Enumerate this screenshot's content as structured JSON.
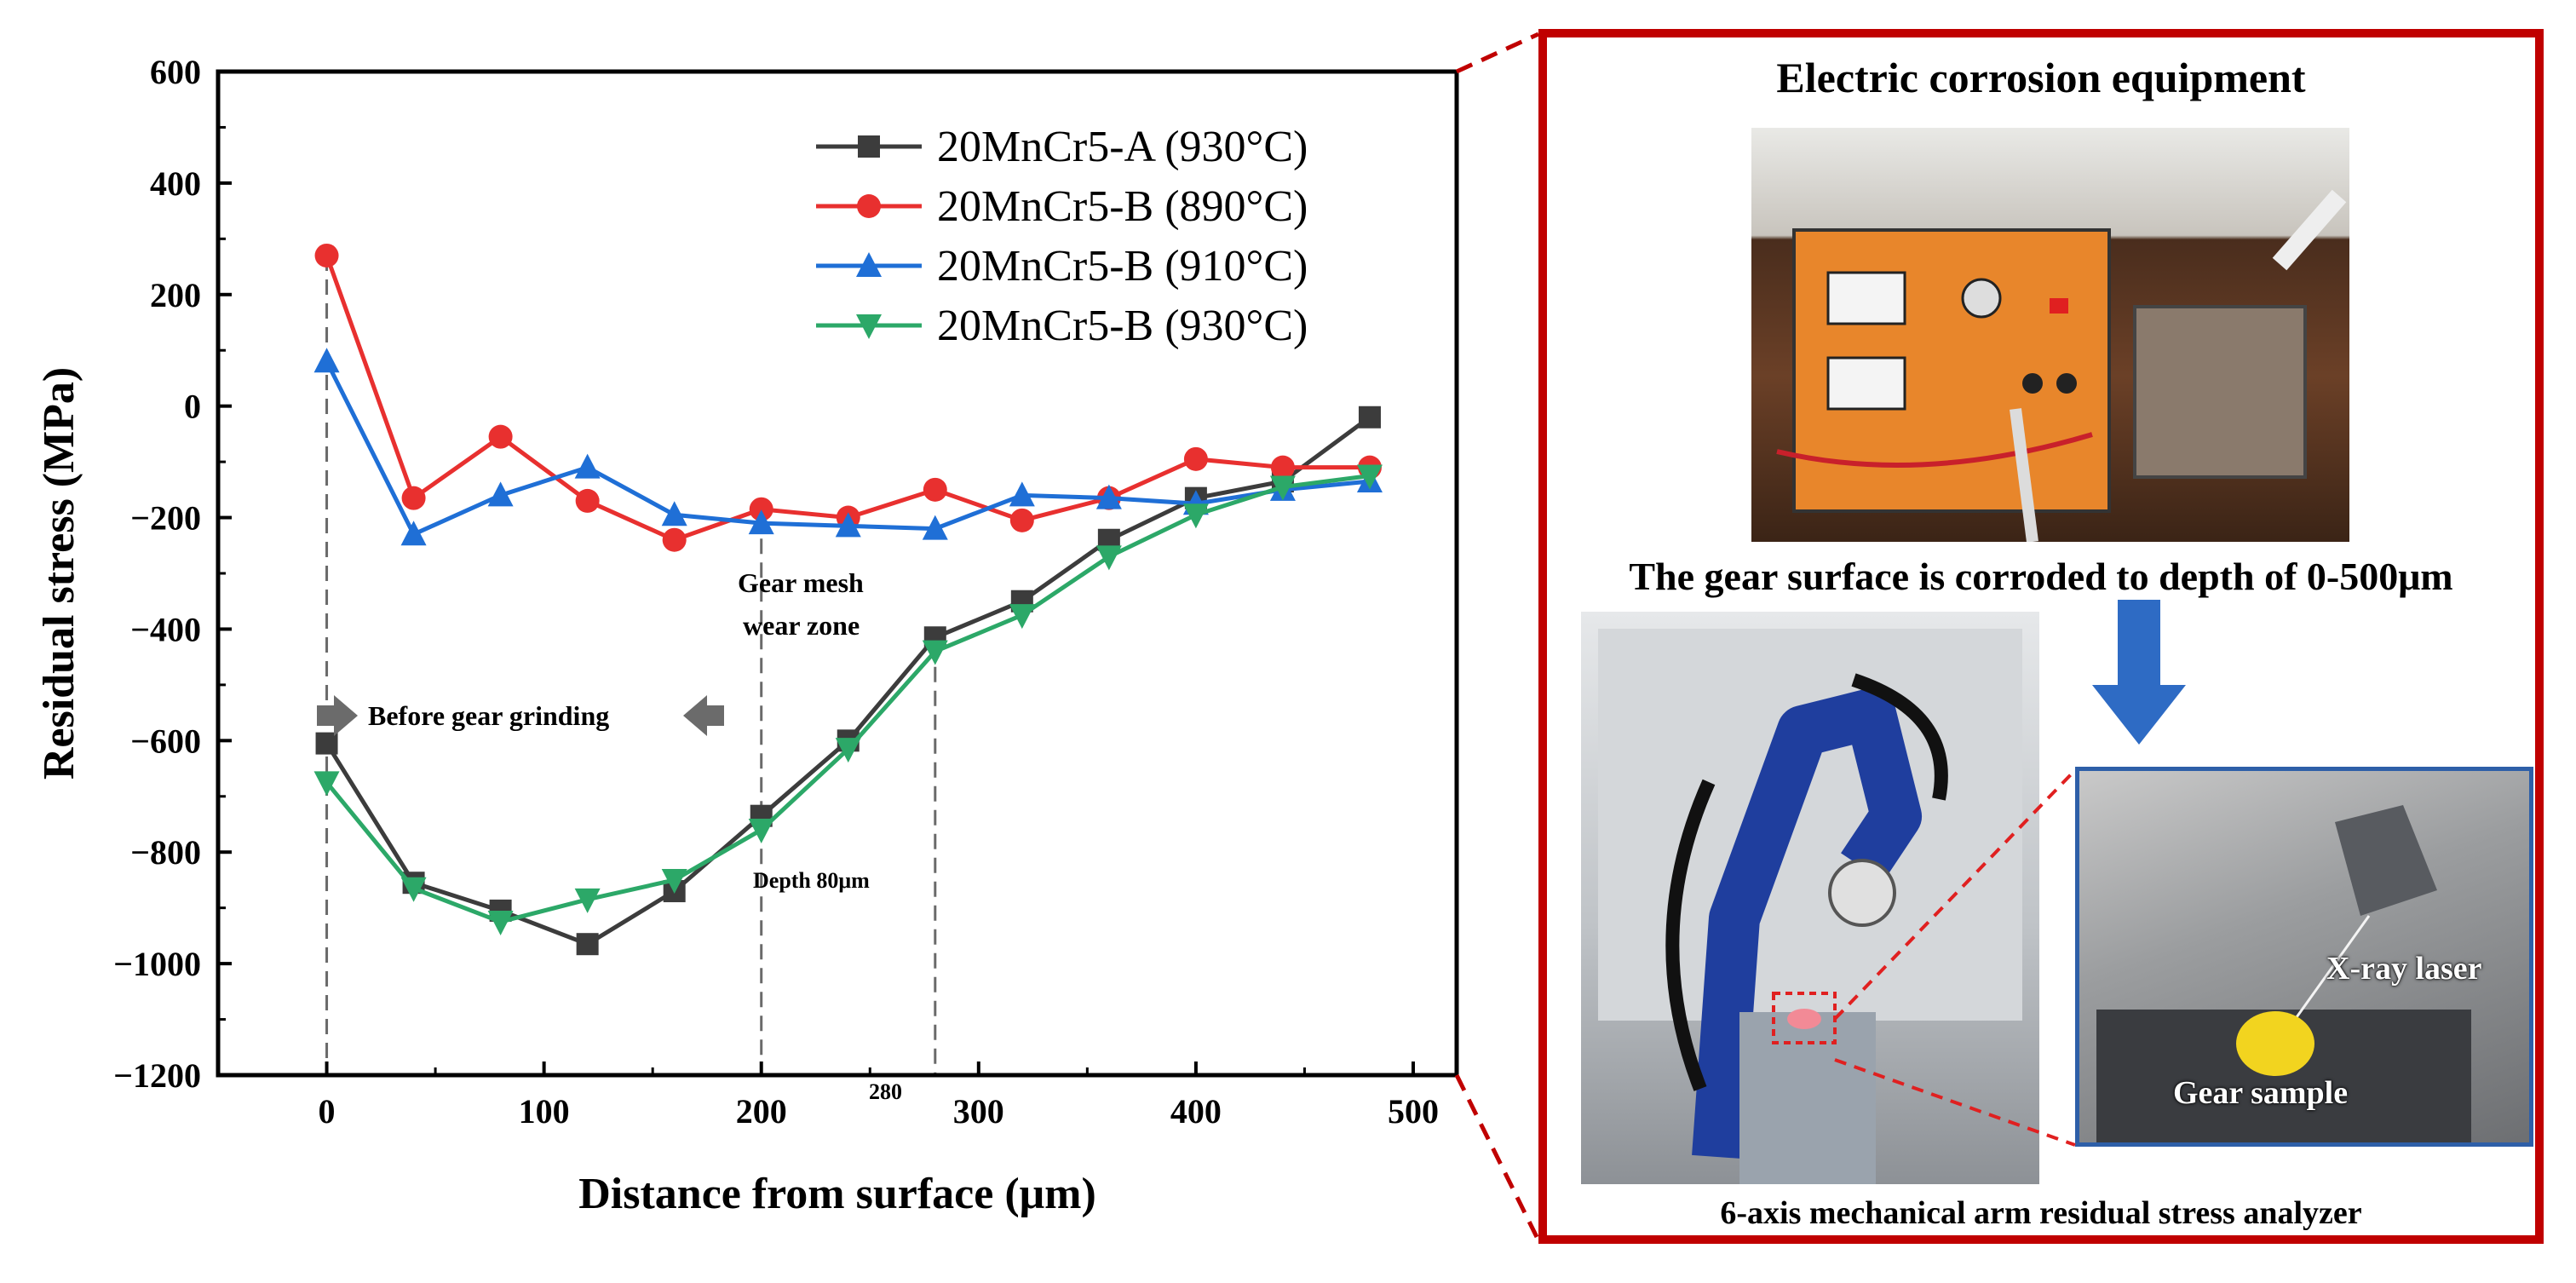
{
  "chart_data": {
    "type": "line",
    "xlabel": "Distance from surface (μm)",
    "ylabel": "Residual stress (MPa)",
    "xlim": [
      -50,
      520
    ],
    "ylim": [
      -1200,
      600
    ],
    "xticks": [
      0,
      100,
      200,
      300,
      400,
      500
    ],
    "yticks": [
      600,
      400,
      200,
      0,
      -200,
      -400,
      -600,
      -800,
      -1000,
      -1200
    ],
    "xtick_labels": [
      "0",
      "100",
      "200",
      "300",
      "400",
      "500"
    ],
    "ytick_labels": [
      "600",
      "400",
      "200",
      "0",
      "−200",
      "−400",
      "−600",
      "−800",
      "−1000",
      "−1200"
    ],
    "legend_position": "top-right",
    "series": [
      {
        "name": "20MnCr5-A (930°C)",
        "color": "#3c3c3c",
        "marker": "square",
        "x": [
          0,
          40,
          80,
          120,
          160,
          200,
          240,
          280,
          320,
          360,
          400,
          440,
          480
        ],
        "y": [
          -605,
          -855,
          -905,
          -965,
          -870,
          -735,
          -600,
          -415,
          -350,
          -240,
          -165,
          -135,
          -20
        ]
      },
      {
        "name": "20MnCr5-B (890°C)",
        "color": "#e8302f",
        "marker": "circle",
        "x": [
          0,
          40,
          80,
          120,
          160,
          200,
          240,
          280,
          320,
          360,
          400,
          440,
          480
        ],
        "y": [
          270,
          -165,
          -55,
          -170,
          -240,
          -185,
          -200,
          -150,
          -205,
          -165,
          -95,
          -110,
          -110
        ]
      },
      {
        "name": "20MnCr5-B (910°C)",
        "color": "#1f6fd6",
        "marker": "triangle-up",
        "x": [
          0,
          40,
          80,
          120,
          160,
          200,
          240,
          280,
          320,
          360,
          400,
          440,
          480
        ],
        "y": [
          80,
          -230,
          -160,
          -110,
          -195,
          -210,
          -215,
          -220,
          -160,
          -165,
          -175,
          -150,
          -135
        ]
      },
      {
        "name": "20MnCr5-B (930°C)",
        "color": "#2ca868",
        "marker": "triangle-down",
        "x": [
          0,
          40,
          80,
          120,
          160,
          200,
          240,
          280,
          320,
          360,
          400,
          440,
          480
        ],
        "y": [
          -675,
          -865,
          -925,
          -885,
          -850,
          -760,
          -615,
          -440,
          -375,
          -270,
          -195,
          -145,
          -125
        ]
      }
    ],
    "reference_lines_x": [
      0,
      200,
      280
    ],
    "annotations": {
      "before_grinding": "Before gear grinding",
      "gear_mesh_line1": "Gear mesh",
      "gear_mesh_line2": "wear zone",
      "depth": "Depth 80μm",
      "x280": "280"
    }
  },
  "panel": {
    "title": "Electric corrosion  equipment",
    "corrosion_text": "The gear surface is corroded to depth of 0-500μm",
    "analyzer_caption": "6-axis mechanical arm residual stress analyzer",
    "xray_label": "X-ray laser",
    "gear_label": "Gear sample",
    "border_color": "#c00000",
    "arrow_color": "#2e6bc4"
  }
}
